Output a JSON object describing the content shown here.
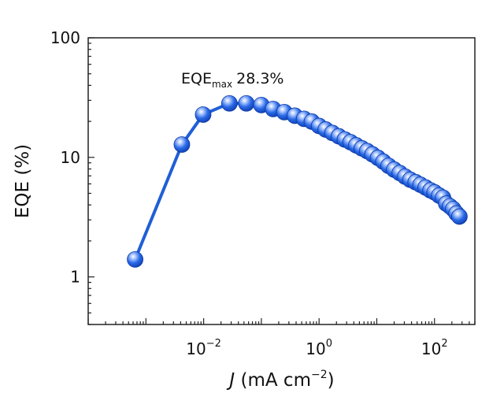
{
  "chart_data": {
    "type": "scatter",
    "x_scale": "log",
    "y_scale": "log",
    "xlim": [
      0.0001,
      500
    ],
    "ylim": [
      0.4,
      100
    ],
    "xlabel": {
      "italic": "J",
      "text": " (mA cm",
      "sup": "−2",
      "tail": ")"
    },
    "ylabel": "EQE (%)",
    "x_ticks": [
      {
        "value": 0.01,
        "base": "10",
        "exp": "−2"
      },
      {
        "value": 1,
        "base": "10",
        "exp": "0"
      },
      {
        "value": 100,
        "base": "10",
        "exp": "2"
      }
    ],
    "y_ticks": [
      {
        "value": 1,
        "label": "1"
      },
      {
        "value": 10,
        "label": "10"
      },
      {
        "value": 100,
        "label": "100"
      }
    ],
    "annotation": {
      "main": "EQE",
      "sub": "max",
      "value": "28.3%"
    },
    "series": [
      {
        "color": "#1f5fd6",
        "x": [
          0.00065,
          0.0042,
          0.0098,
          0.028,
          0.055,
          0.1,
          0.16,
          0.25,
          0.38,
          0.55,
          0.75,
          1.0,
          1.3,
          1.7,
          2.2,
          2.8,
          3.5,
          4.4,
          5.5,
          6.8,
          8.4,
          10.5,
          13,
          16,
          20,
          25,
          31,
          38,
          47,
          57,
          70,
          85,
          100,
          120,
          140,
          160,
          185,
          210,
          240,
          270
        ],
        "y": [
          1.4,
          12.8,
          22.8,
          28.3,
          28.3,
          27.4,
          25.4,
          23.9,
          22.3,
          21.0,
          19.9,
          18.3,
          17.1,
          16.0,
          15.0,
          14.1,
          13.4,
          12.6,
          11.9,
          11.3,
          10.6,
          9.9,
          9.2,
          8.5,
          7.9,
          7.4,
          6.9,
          6.5,
          6.2,
          5.9,
          5.6,
          5.3,
          5.1,
          4.8,
          4.6,
          4.1,
          3.9,
          3.7,
          3.4,
          3.2
        ]
      }
    ]
  }
}
